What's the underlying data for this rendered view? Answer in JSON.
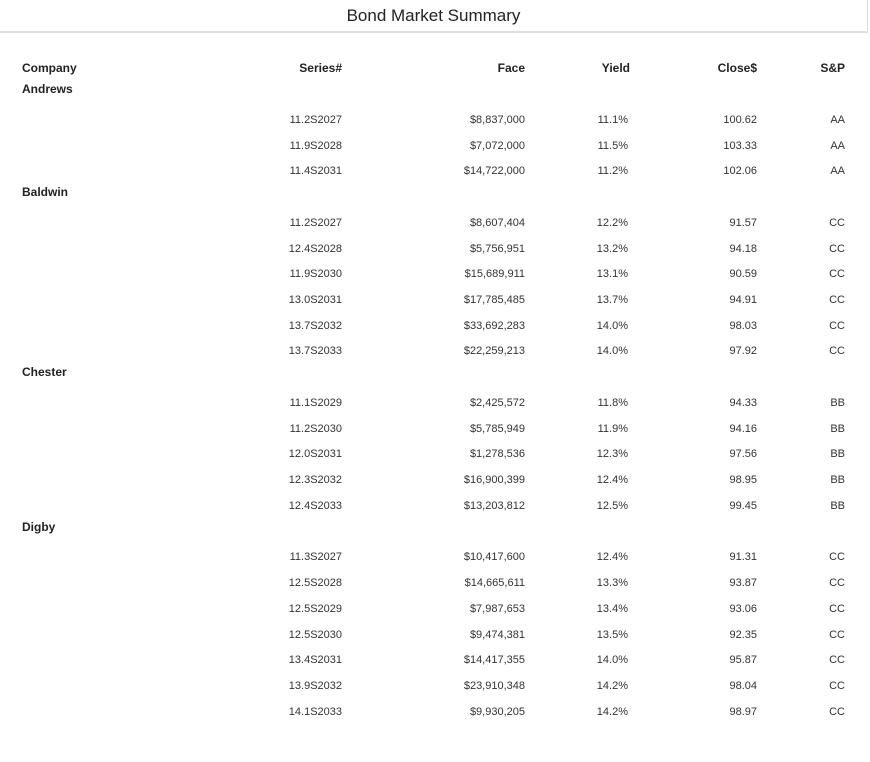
{
  "header": {
    "title": "Bond Market Summary"
  },
  "table": {
    "columns": {
      "company": "Company",
      "series": "Series#",
      "face": "Face",
      "yield": "Yield",
      "close": "Close$",
      "sp": "S&P"
    },
    "groups": [
      {
        "company": "Andrews",
        "bonds": [
          {
            "series": "11.2S2027",
            "face": "$8,837,000",
            "yield": "11.1%",
            "close": "100.62",
            "sp": "AA"
          },
          {
            "series": "11.9S2028",
            "face": "$7,072,000",
            "yield": "11.5%",
            "close": "103.33",
            "sp": "AA"
          },
          {
            "series": "11.4S2031",
            "face": "$14,722,000",
            "yield": "11.2%",
            "close": "102.06",
            "sp": "AA"
          }
        ]
      },
      {
        "company": "Baldwin",
        "bonds": [
          {
            "series": "11.2S2027",
            "face": "$8,607,404",
            "yield": "12.2%",
            "close": "91.57",
            "sp": "CC"
          },
          {
            "series": "12.4S2028",
            "face": "$5,756,951",
            "yield": "13.2%",
            "close": "94.18",
            "sp": "CC"
          },
          {
            "series": "11.9S2030",
            "face": "$15,689,911",
            "yield": "13.1%",
            "close": "90.59",
            "sp": "CC"
          },
          {
            "series": "13.0S2031",
            "face": "$17,785,485",
            "yield": "13.7%",
            "close": "94.91",
            "sp": "CC"
          },
          {
            "series": "13.7S2032",
            "face": "$33,692,283",
            "yield": "14.0%",
            "close": "98.03",
            "sp": "CC"
          },
          {
            "series": "13.7S2033",
            "face": "$22,259,213",
            "yield": "14.0%",
            "close": "97.92",
            "sp": "CC"
          }
        ]
      },
      {
        "company": "Chester",
        "bonds": [
          {
            "series": "11.1S2029",
            "face": "$2,425,572",
            "yield": "11.8%",
            "close": "94.33",
            "sp": "BB"
          },
          {
            "series": "11.2S2030",
            "face": "$5,785,949",
            "yield": "11.9%",
            "close": "94.16",
            "sp": "BB"
          },
          {
            "series": "12.0S2031",
            "face": "$1,278,536",
            "yield": "12.3%",
            "close": "97.56",
            "sp": "BB"
          },
          {
            "series": "12.3S2032",
            "face": "$16,900,399",
            "yield": "12.4%",
            "close": "98.95",
            "sp": "BB"
          },
          {
            "series": "12.4S2033",
            "face": "$13,203,812",
            "yield": "12.5%",
            "close": "99.45",
            "sp": "BB"
          }
        ]
      },
      {
        "company": "Digby",
        "bonds": [
          {
            "series": "11.3S2027",
            "face": "$10,417,600",
            "yield": "12.4%",
            "close": "91.31",
            "sp": "CC"
          },
          {
            "series": "12.5S2028",
            "face": "$14,665,611",
            "yield": "13.3%",
            "close": "93.87",
            "sp": "CC"
          },
          {
            "series": "12.5S2029",
            "face": "$7,987,653",
            "yield": "13.4%",
            "close": "93.06",
            "sp": "CC"
          },
          {
            "series": "12.5S2030",
            "face": "$9,474,381",
            "yield": "13.5%",
            "close": "92.35",
            "sp": "CC"
          },
          {
            "series": "13.4S2031",
            "face": "$14,417,355",
            "yield": "14.0%",
            "close": "95.87",
            "sp": "CC"
          },
          {
            "series": "13.9S2032",
            "face": "$23,910,348",
            "yield": "14.2%",
            "close": "98.04",
            "sp": "CC"
          },
          {
            "series": "14.1S2033",
            "face": "$9,930,205",
            "yield": "14.2%",
            "close": "98.97",
            "sp": "CC"
          }
        ]
      }
    ]
  }
}
